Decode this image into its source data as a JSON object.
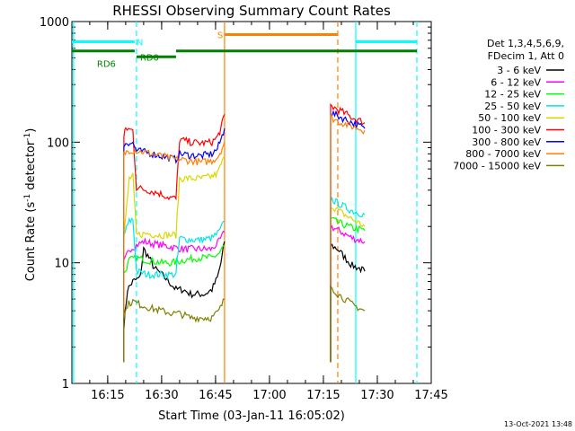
{
  "chart_data": {
    "type": "line",
    "title": "RHESSI Observing Summary Count Rates",
    "xlabel": "Start Time (03-Jan-11 16:05:02)",
    "ylabel": "Count Rate (s",
    "ylabel_sup": "-1",
    "ylabel_tail": " detector",
    "ylabel_tail_sup": "-1",
    "ylabel_close": ")",
    "y_scale": "log",
    "ylim": [
      1,
      1000
    ],
    "y_ticks": [
      {
        "v": 1,
        "label": "1"
      },
      {
        "v": 10,
        "label": "10"
      },
      {
        "v": 100,
        "label": "100"
      },
      {
        "v": 1000,
        "label": "1000"
      }
    ],
    "xlim": [
      "16:05:02",
      "17:45:00"
    ],
    "x_ticks": [
      {
        "v": "16:15",
        "label": "16:15"
      },
      {
        "v": "16:30",
        "label": "16:30"
      },
      {
        "v": "16:45",
        "label": "16:45"
      },
      {
        "v": "17:00",
        "label": "17:00"
      },
      {
        "v": "17:15",
        "label": "17:15"
      },
      {
        "v": "17:30",
        "label": "17:30"
      },
      {
        "v": "17:45",
        "label": "17:45"
      }
    ],
    "legend": {
      "placement": "right",
      "header": [
        "Det 1,3,4,5,6,9,",
        "FDecim 1, Att 0"
      ]
    },
    "series": [
      {
        "name": "3 - 6 keV",
        "color": "#000000",
        "segments": [
          [
            [
              "16:19:30",
              3.0
            ],
            [
              "16:20:30",
              6.0
            ],
            [
              "16:22:00",
              7.0
            ],
            [
              "16:24:00",
              7.5
            ],
            [
              "16:25:00",
              13
            ],
            [
              "16:26:30",
              11
            ],
            [
              "16:28:00",
              9
            ],
            [
              "16:30:00",
              8
            ],
            [
              "16:32:00",
              7
            ],
            [
              "16:34:00",
              6
            ],
            [
              "16:36:00",
              6
            ],
            [
              "16:38:00",
              5.5
            ],
            [
              "16:40:00",
              5.5
            ],
            [
              "16:42:00",
              5.5
            ],
            [
              "16:44:00",
              6
            ],
            [
              "16:45:30",
              7.5
            ],
            [
              "16:46:30",
              10
            ],
            [
              "16:47:30",
              15
            ]
          ],
          [
            [
              "17:17:00",
              14
            ],
            [
              "17:19:00",
              13
            ],
            [
              "17:21:00",
              11
            ],
            [
              "17:23:00",
              9.5
            ],
            [
              "17:25:00",
              9
            ],
            [
              "17:26:30",
              8.5
            ]
          ]
        ]
      },
      {
        "name": "6 - 12 keV",
        "color": "#ff00ff",
        "segments": [
          [
            [
              "16:19:30",
              10
            ],
            [
              "16:21:00",
              13
            ],
            [
              "16:23:00",
              14
            ],
            [
              "16:25:00",
              15
            ],
            [
              "16:27:00",
              14.5
            ],
            [
              "16:30:00",
              14
            ],
            [
              "16:33:00",
              13.5
            ],
            [
              "16:36:00",
              13
            ],
            [
              "16:40:00",
              13
            ],
            [
              "16:44:00",
              13
            ],
            [
              "16:46:00",
              15
            ],
            [
              "16:47:30",
              18
            ]
          ],
          [
            [
              "17:17:00",
              20
            ],
            [
              "17:20:00",
              18
            ],
            [
              "17:23:00",
              16
            ],
            [
              "17:26:30",
              15
            ]
          ]
        ]
      },
      {
        "name": "12 - 25 keV",
        "color": "#00ff00",
        "segments": [
          [
            [
              "16:19:30",
              8
            ],
            [
              "16:21:00",
              10.5
            ],
            [
              "16:23:00",
              11
            ],
            [
              "16:26:00",
              10.5
            ],
            [
              "16:30:00",
              10
            ],
            [
              "16:33:00",
              10
            ],
            [
              "16:36:00",
              10.5
            ],
            [
              "16:40:00",
              11
            ],
            [
              "16:44:00",
              11
            ],
            [
              "16:46:00",
              12
            ],
            [
              "16:47:30",
              14
            ]
          ],
          [
            [
              "17:17:00",
              23
            ],
            [
              "17:20:00",
              21
            ],
            [
              "17:23:00",
              19.5
            ],
            [
              "17:26:30",
              18.5
            ]
          ]
        ]
      },
      {
        "name": "25 - 50 keV",
        "color": "#00e5e5",
        "segments": [
          [
            [
              "16:19:30",
              17
            ],
            [
              "16:21:00",
              22
            ],
            [
              "16:22:00",
              23
            ],
            [
              "16:23:00",
              8.5
            ],
            [
              "16:26:00",
              8
            ],
            [
              "16:29:00",
              8
            ],
            [
              "16:32:00",
              8
            ],
            [
              "16:34:00",
              8
            ],
            [
              "16:35:00",
              16
            ],
            [
              "16:38:00",
              15.5
            ],
            [
              "16:41:00",
              15.5
            ],
            [
              "16:44:00",
              16
            ],
            [
              "16:46:00",
              18
            ],
            [
              "16:47:30",
              22
            ]
          ],
          [
            [
              "17:17:00",
              34
            ],
            [
              "17:20:00",
              30
            ],
            [
              "17:23:00",
              27
            ],
            [
              "17:26:30",
              25
            ]
          ]
        ]
      },
      {
        "name": "50 - 100 keV",
        "color": "#d8d800",
        "segments": [
          [
            [
              "16:19:30",
              16
            ],
            [
              "16:21:00",
              50
            ],
            [
              "16:22:00",
              52
            ],
            [
              "16:23:00",
              17
            ],
            [
              "16:26:00",
              17.5
            ],
            [
              "16:29:00",
              17
            ],
            [
              "16:32:00",
              17
            ],
            [
              "16:34:00",
              17
            ],
            [
              "16:35:00",
              50
            ],
            [
              "16:38:00",
              50
            ],
            [
              "16:41:00",
              50
            ],
            [
              "16:44:00",
              52
            ],
            [
              "16:45:30",
              55
            ],
            [
              "16:46:30",
              65
            ],
            [
              "16:47:30",
              75
            ]
          ],
          [
            [
              "17:17:00",
              30
            ],
            [
              "17:20:00",
              26
            ],
            [
              "17:23:00",
              23
            ],
            [
              "17:26:30",
              20
            ]
          ]
        ]
      },
      {
        "name": "100 - 300 keV",
        "color": "#ff0000",
        "segments": [
          [
            [
              "16:19:30",
              110
            ],
            [
              "16:20:00",
              130
            ],
            [
              "16:22:00",
              125
            ],
            [
              "16:23:00",
              42
            ],
            [
              "16:26:00",
              40
            ],
            [
              "16:29:00",
              38
            ],
            [
              "16:32:00",
              35
            ],
            [
              "16:34:00",
              34
            ],
            [
              "16:35:00",
              105
            ],
            [
              "16:38:00",
              100
            ],
            [
              "16:41:00",
              98
            ],
            [
              "16:44:00",
              100
            ],
            [
              "16:45:30",
              110
            ],
            [
              "16:46:30",
              130
            ],
            [
              "16:47:30",
              170
            ]
          ],
          [
            [
              "17:17:00",
              200
            ],
            [
              "17:20:00",
              180
            ],
            [
              "17:23:00",
              160
            ],
            [
              "17:26:30",
              145
            ]
          ]
        ]
      },
      {
        "name": "300 - 800 keV",
        "color": "#0000ff",
        "segments": [
          [
            [
              "16:19:30",
              90
            ],
            [
              "16:20:00",
              100
            ],
            [
              "16:22:00",
              98
            ],
            [
              "16:23:00",
              85
            ],
            [
              "16:26:00",
              82
            ],
            [
              "16:29:00",
              78
            ],
            [
              "16:32:00",
              74
            ],
            [
              "16:34:00",
              72
            ],
            [
              "16:35:00",
              80
            ],
            [
              "16:38:00",
              78
            ],
            [
              "16:41:00",
              77
            ],
            [
              "16:44:00",
              80
            ],
            [
              "16:45:30",
              88
            ],
            [
              "16:46:30",
              105
            ],
            [
              "16:47:30",
              130
            ]
          ],
          [
            [
              "17:17:00",
              175
            ],
            [
              "17:20:00",
              160
            ],
            [
              "17:23:00",
              145
            ],
            [
              "17:26:30",
              130
            ]
          ]
        ]
      },
      {
        "name": "800 - 7000 keV",
        "color": "#ff8000",
        "segments": [
          [
            [
              "16:19:30",
              80
            ],
            [
              "16:21:00",
              86
            ],
            [
              "16:23:00",
              85
            ],
            [
              "16:26:00",
              82
            ],
            [
              "16:29:00",
              78
            ],
            [
              "16:32:00",
              74
            ],
            [
              "16:34:00",
              72
            ],
            [
              "16:35:00",
              72
            ],
            [
              "16:38:00",
              70
            ],
            [
              "16:41:00",
              68
            ],
            [
              "16:44:00",
              70
            ],
            [
              "16:45:30",
              75
            ],
            [
              "16:46:30",
              85
            ],
            [
              "16:47:30",
              100
            ]
          ],
          [
            [
              "17:17:00",
              160
            ],
            [
              "17:20:00",
              145
            ],
            [
              "17:23:00",
              135
            ],
            [
              "17:26:30",
              125
            ]
          ]
        ]
      },
      {
        "name": "7000 - 15000 keV",
        "color": "#808000",
        "segments": [
          [
            [
              "16:19:30",
              3.5
            ],
            [
              "16:20:30",
              4.5
            ],
            [
              "16:22:00",
              4.8
            ],
            [
              "16:24:00",
              4.5
            ],
            [
              "16:27:00",
              4.2
            ],
            [
              "16:30:00",
              4.0
            ],
            [
              "16:33:00",
              3.8
            ],
            [
              "16:35:00",
              3.8
            ],
            [
              "16:38:00",
              3.5
            ],
            [
              "16:41:00",
              3.5
            ],
            [
              "16:44:00",
              3.5
            ],
            [
              "16:46:00",
              4.0
            ],
            [
              "16:47:30",
              5.0
            ]
          ],
          [
            [
              "17:17:00",
              6.5
            ],
            [
              "17:19:00",
              5.5
            ],
            [
              "17:21:00",
              5.0
            ],
            [
              "17:23:00",
              4.5
            ],
            [
              "17:26:30",
              4.0
            ]
          ]
        ]
      }
    ],
    "flag_bars": [
      {
        "label": "",
        "color": "#00ffff",
        "y": 680,
        "intervals": [
          [
            "16:05:02",
            "16:22:30"
          ],
          [
            "17:24:00",
            "17:41:00"
          ]
        ]
      },
      {
        "label": "N",
        "color": "#00ffff",
        "y": 680,
        "label_at": "16:23:00",
        "intervals": []
      },
      {
        "label": "S",
        "color": "#ff8000",
        "y": 780,
        "label_at": "16:45:30",
        "intervals": [
          [
            "16:47:30",
            "17:19:00"
          ]
        ]
      },
      {
        "label": "RD0",
        "color": "#008000",
        "y": 510,
        "label_at": "16:24:00",
        "intervals": [
          [
            "16:23:00",
            "16:34:00"
          ]
        ]
      },
      {
        "label": "",
        "color": "#008000",
        "y": 570,
        "intervals": [
          [
            "16:05:02",
            "16:22:30"
          ],
          [
            "16:34:00",
            "17:41:00"
          ]
        ]
      },
      {
        "label": "RD6",
        "color": "#008000",
        "y": 450,
        "label_at": "16:12:00",
        "intervals": []
      }
    ],
    "vlines": [
      {
        "t": "16:05:30",
        "color": "#00ffff",
        "style": "solid"
      },
      {
        "t": "16:23:00",
        "color": "#00ffff",
        "style": "dashed"
      },
      {
        "t": "16:47:30",
        "color": "#ff8000",
        "style": "solid"
      },
      {
        "t": "17:19:00",
        "color": "#ff8000",
        "style": "dashed"
      },
      {
        "t": "17:24:00",
        "color": "#00ffff",
        "style": "solid"
      },
      {
        "t": "17:41:00",
        "color": "#00ffff",
        "style": "dashed"
      }
    ],
    "footer": "13-Oct-2021 13:48"
  }
}
